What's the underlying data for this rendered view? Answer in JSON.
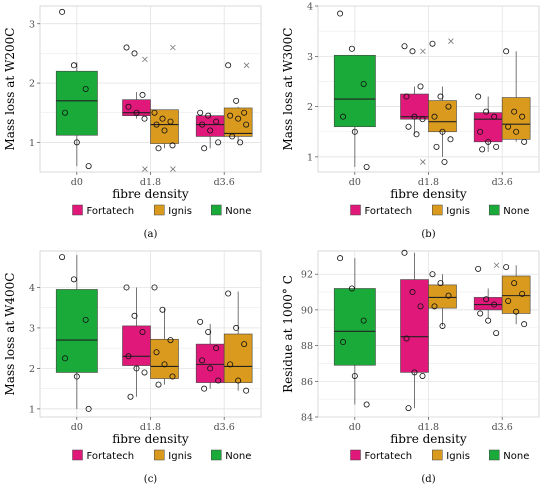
{
  "legend": [
    {
      "name": "Fortatech",
      "color": "#e0187a"
    },
    {
      "name": "Ignis",
      "color": "#d99a1e"
    },
    {
      "name": "None",
      "color": "#1aaa3a"
    }
  ],
  "chart_data": [
    {
      "panel": "(a)",
      "type": "box",
      "xlabel": "fibre density",
      "ylabel": "Mass loss at W200C",
      "categories": [
        "d0",
        "d1.8",
        "d3.6"
      ],
      "ylim": [
        0.5,
        3.3
      ],
      "yticks": [
        1,
        2,
        3
      ],
      "boxes": [
        {
          "category": "d0",
          "group": "None",
          "min": 0.6,
          "q1": 1.12,
          "median": 1.7,
          "q3": 2.2,
          "max": 2.35,
          "points": [
            3.2,
            2.3,
            1.9,
            1.5,
            1.0,
            0.6
          ],
          "outliers": []
        },
        {
          "category": "d1.8",
          "group": "Fortatech",
          "min": 1.4,
          "q1": 1.45,
          "median": 1.5,
          "q3": 1.72,
          "max": 1.85,
          "points": [
            2.6,
            2.5,
            1.8,
            1.6,
            1.5,
            1.4
          ],
          "outliers": [
            2.4,
            0.55
          ]
        },
        {
          "category": "d1.8",
          "group": "Ignis",
          "min": 0.9,
          "q1": 0.98,
          "median": 1.3,
          "q3": 1.55,
          "max": 1.55,
          "points": [
            1.5,
            1.4,
            1.35,
            1.3,
            1.2,
            0.95,
            0.9
          ],
          "outliers": [
            2.6,
            0.55
          ]
        },
        {
          "category": "d3.6",
          "group": "Fortatech",
          "min": 0.9,
          "q1": 1.1,
          "median": 1.3,
          "q3": 1.45,
          "max": 1.5,
          "points": [
            1.5,
            1.45,
            1.35,
            1.3,
            1.2,
            1.0,
            0.9
          ],
          "outliers": []
        },
        {
          "category": "d3.6",
          "group": "Ignis",
          "min": 1.0,
          "q1": 1.1,
          "median": 1.15,
          "q3": 1.58,
          "max": 1.6,
          "points": [
            2.3,
            1.7,
            1.5,
            1.45,
            1.4,
            1.3,
            1.1,
            1.0
          ],
          "outliers": [
            2.3
          ]
        }
      ]
    },
    {
      "panel": "(b)",
      "type": "box",
      "xlabel": "fibre density",
      "ylabel": "Mass loss at W300C",
      "categories": [
        "d0",
        "d1.8",
        "d3.6"
      ],
      "ylim": [
        0.7,
        4.0
      ],
      "yticks": [
        1,
        2,
        3,
        4
      ],
      "boxes": [
        {
          "category": "d0",
          "group": "None",
          "min": 0.8,
          "q1": 1.6,
          "median": 2.15,
          "q3": 3.02,
          "max": 3.02,
          "points": [
            3.85,
            3.15,
            2.45,
            1.8,
            1.5,
            0.8
          ],
          "outliers": []
        },
        {
          "category": "d1.8",
          "group": "Fortatech",
          "min": 1.45,
          "q1": 1.75,
          "median": 1.8,
          "q3": 2.25,
          "max": 2.4,
          "points": [
            3.2,
            3.1,
            2.4,
            2.2,
            1.8,
            1.75,
            1.6,
            1.45
          ],
          "outliers": [
            3.1,
            0.9
          ]
        },
        {
          "category": "d1.8",
          "group": "Ignis",
          "min": 1.0,
          "q1": 1.5,
          "median": 1.7,
          "q3": 2.12,
          "max": 2.4,
          "points": [
            3.25,
            2.2,
            2.0,
            1.8,
            1.5,
            1.35,
            1.2,
            0.9
          ],
          "outliers": [
            3.3
          ]
        },
        {
          "category": "d3.6",
          "group": "Fortatech",
          "min": 1.1,
          "q1": 1.3,
          "median": 1.75,
          "q3": 1.88,
          "max": 2.2,
          "points": [
            2.2,
            1.9,
            1.8,
            1.5,
            1.3,
            1.2,
            1.15
          ],
          "outliers": []
        },
        {
          "category": "d3.6",
          "group": "Ignis",
          "min": 1.3,
          "q1": 1.35,
          "median": 1.65,
          "q3": 2.18,
          "max": 3.1,
          "points": [
            3.1,
            1.9,
            1.8,
            1.6,
            1.5,
            1.3
          ],
          "outliers": []
        }
      ]
    },
    {
      "panel": "(c)",
      "type": "box",
      "xlabel": "fibre density",
      "ylabel": "Mass loss at W400C",
      "categories": [
        "d0",
        "d1.8",
        "d3.6"
      ],
      "ylim": [
        0.8,
        4.9
      ],
      "yticks": [
        1,
        2,
        3,
        4
      ],
      "boxes": [
        {
          "category": "d0",
          "group": "None",
          "min": 1.0,
          "q1": 1.9,
          "median": 2.7,
          "q3": 3.95,
          "max": 4.8,
          "points": [
            4.75,
            4.2,
            3.2,
            2.25,
            1.8,
            1.0
          ],
          "outliers": []
        },
        {
          "category": "d1.8",
          "group": "Fortatech",
          "min": 1.3,
          "q1": 2.07,
          "median": 2.3,
          "q3": 3.05,
          "max": 4.0,
          "points": [
            4.0,
            3.3,
            2.9,
            2.3,
            2.0,
            1.9,
            1.3
          ],
          "outliers": []
        },
        {
          "category": "d1.8",
          "group": "Ignis",
          "min": 1.6,
          "q1": 1.75,
          "median": 2.05,
          "q3": 2.72,
          "max": 3.5,
          "points": [
            4.0,
            3.45,
            2.7,
            2.4,
            2.1,
            1.8,
            1.6
          ],
          "outliers": []
        },
        {
          "category": "d3.6",
          "group": "Fortatech",
          "min": 1.5,
          "q1": 1.65,
          "median": 2.1,
          "q3": 2.6,
          "max": 3.1,
          "points": [
            3.15,
            2.9,
            2.5,
            2.2,
            2.0,
            1.7,
            1.5
          ],
          "outliers": []
        },
        {
          "category": "d3.6",
          "group": "Ignis",
          "min": 1.45,
          "q1": 1.65,
          "median": 2.05,
          "q3": 2.85,
          "max": 3.9,
          "points": [
            3.85,
            3.0,
            2.6,
            2.1,
            1.7,
            1.45
          ],
          "outliers": []
        }
      ]
    },
    {
      "panel": "(d)",
      "type": "box",
      "xlabel": "fibre density",
      "ylabel": "Residue at 1000° C",
      "categories": [
        "d0",
        "d1.8",
        "d3.6"
      ],
      "ylim": [
        84.0,
        93.3
      ],
      "yticks": [
        84,
        86,
        88,
        90,
        92
      ],
      "boxes": [
        {
          "category": "d0",
          "group": "None",
          "min": 84.7,
          "q1": 86.9,
          "median": 88.8,
          "q3": 91.2,
          "max": 92.9,
          "points": [
            92.9,
            91.2,
            89.4,
            88.2,
            86.3,
            84.7
          ],
          "outliers": []
        },
        {
          "category": "d1.8",
          "group": "Fortatech",
          "min": 84.5,
          "q1": 86.5,
          "median": 88.5,
          "q3": 91.7,
          "max": 93.2,
          "points": [
            93.2,
            91.0,
            90.2,
            88.4,
            86.5,
            86.3,
            84.5
          ],
          "outliers": []
        },
        {
          "category": "d1.8",
          "group": "Ignis",
          "min": 89.1,
          "q1": 90.1,
          "median": 90.7,
          "q3": 91.4,
          "max": 92.0,
          "points": [
            92.0,
            91.5,
            90.8,
            90.2,
            89.1
          ],
          "outliers": []
        },
        {
          "category": "d3.6",
          "group": "Fortatech",
          "min": 89.5,
          "q1": 90.0,
          "median": 90.3,
          "q3": 90.7,
          "max": 91.2,
          "points": [
            92.3,
            90.6,
            90.3,
            89.8,
            89.4,
            88.7
          ],
          "outliers": [
            92.5
          ]
        },
        {
          "category": "d3.6",
          "group": "Ignis",
          "min": 89.2,
          "q1": 89.8,
          "median": 90.8,
          "q3": 91.9,
          "max": 92.5,
          "points": [
            92.4,
            91.5,
            90.9,
            90.5,
            89.9,
            89.2
          ],
          "outliers": []
        }
      ]
    }
  ]
}
